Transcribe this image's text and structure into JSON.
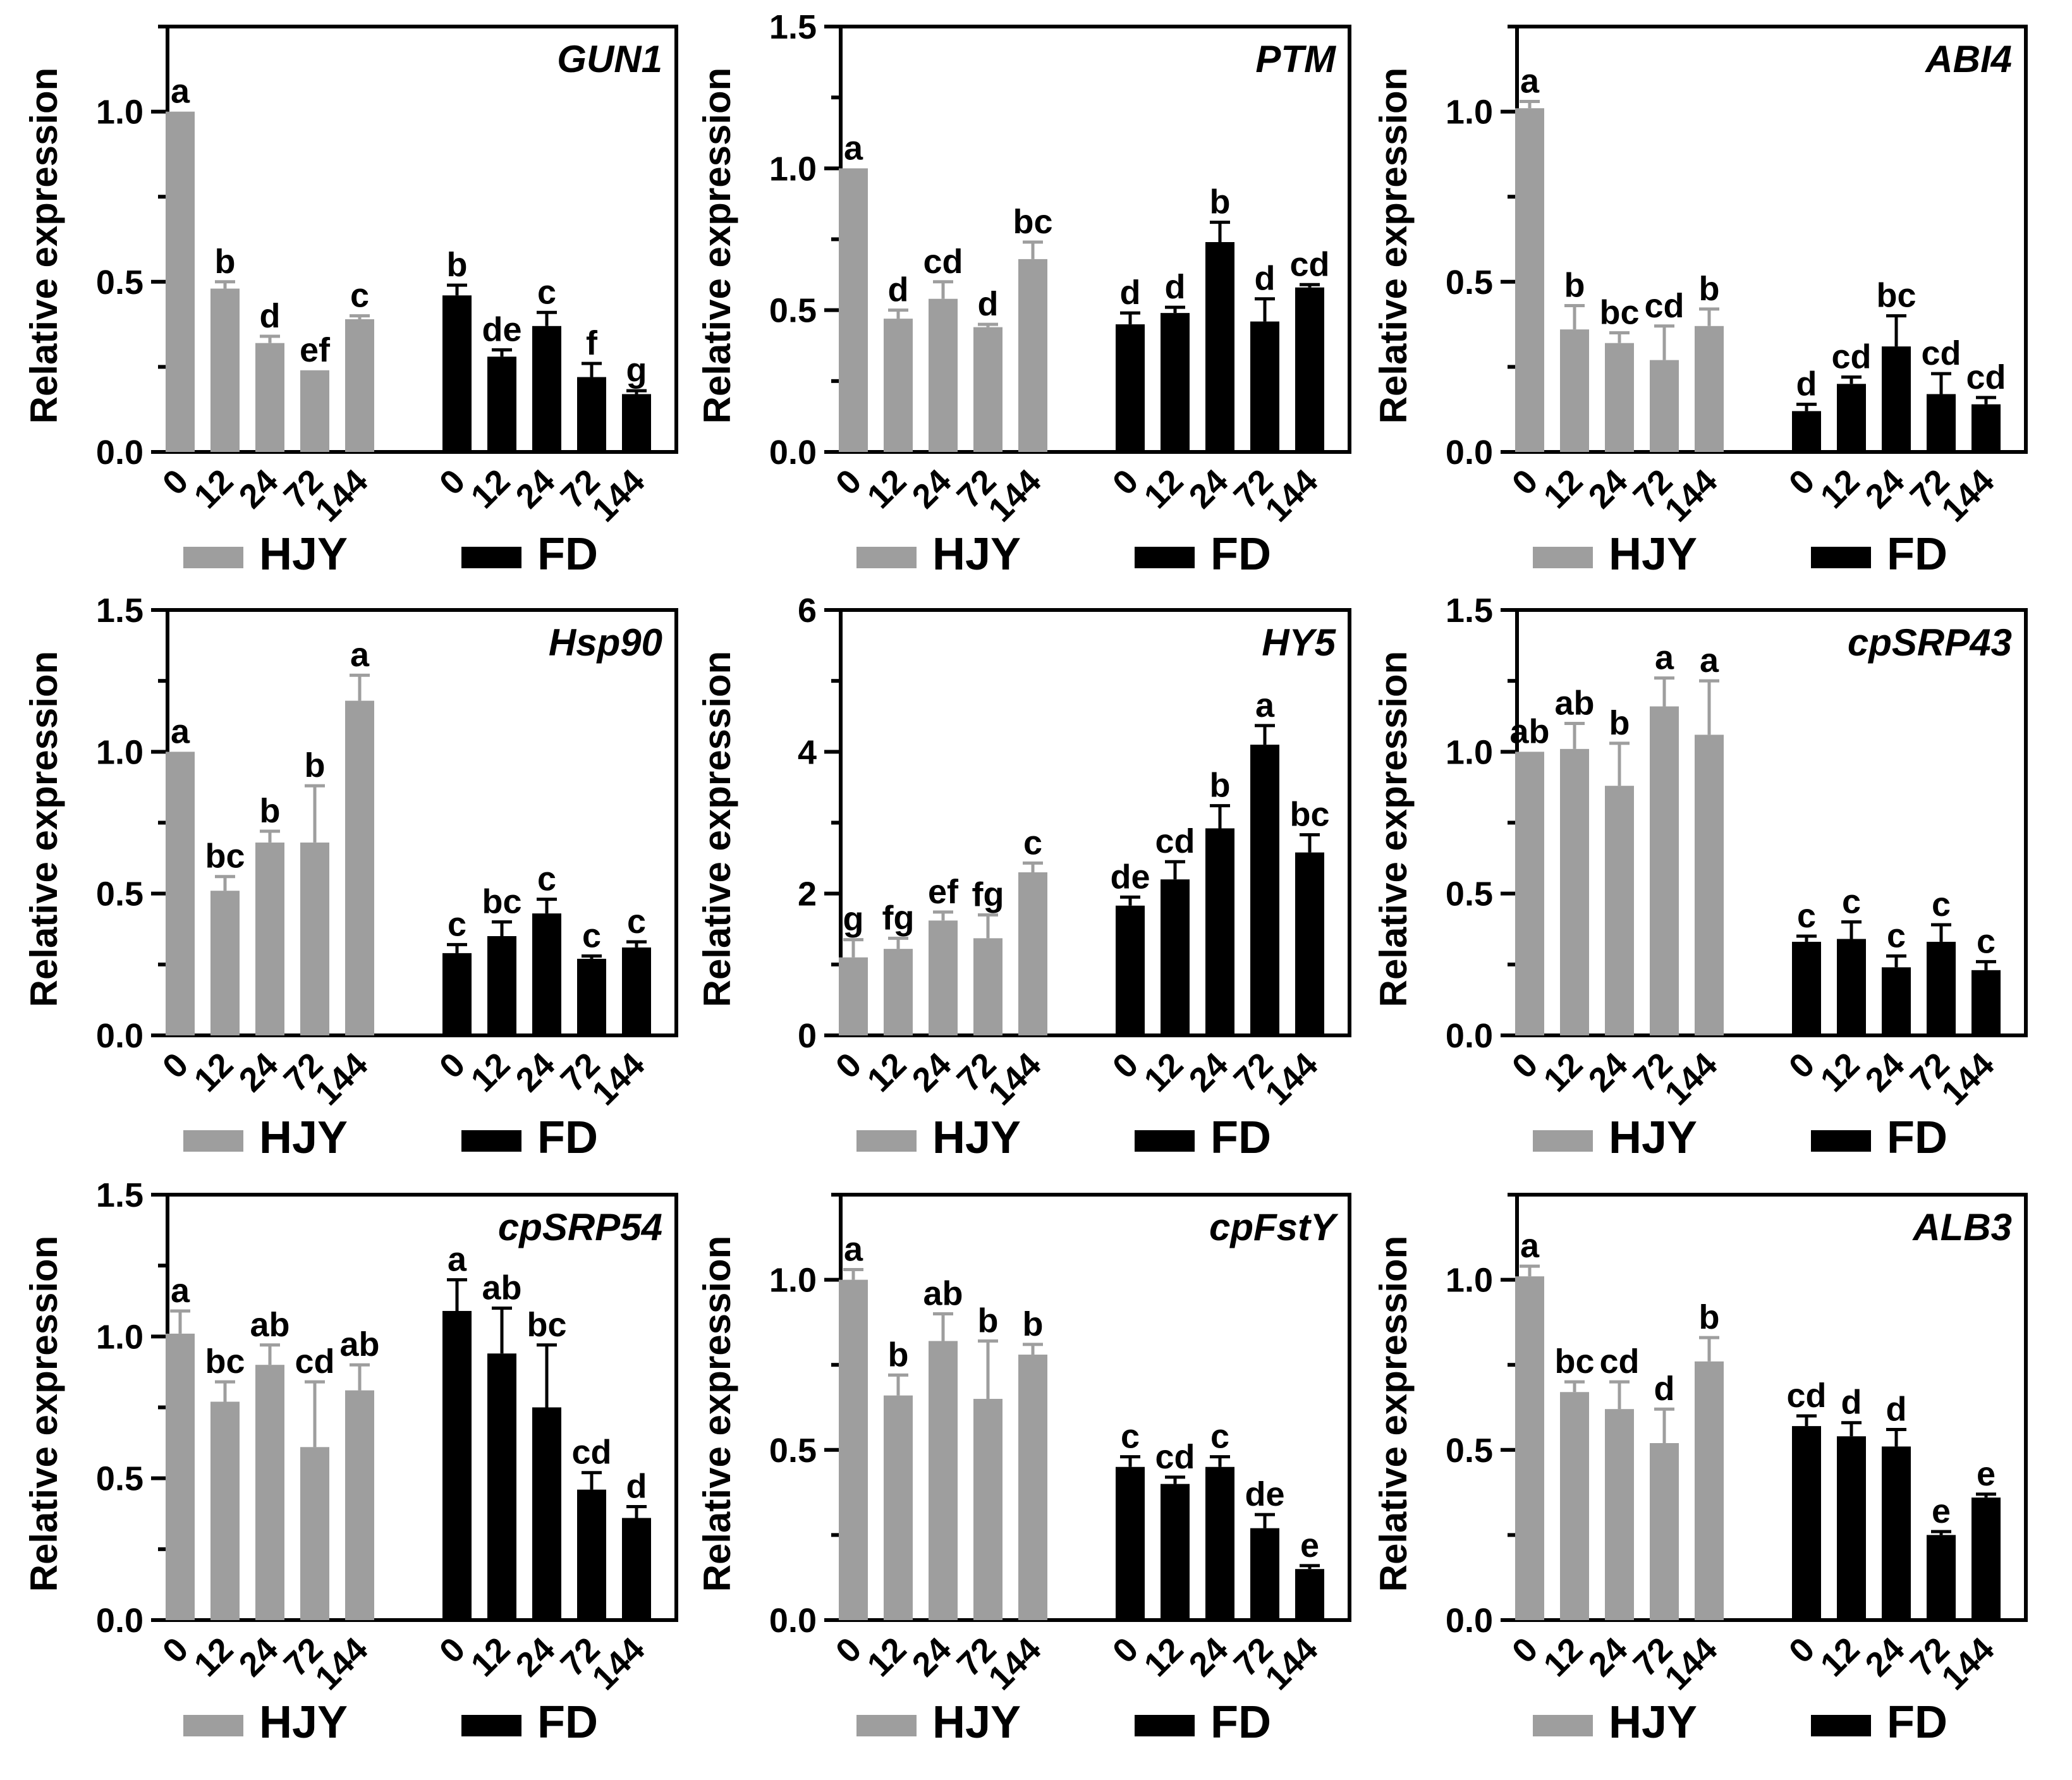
{
  "figure": {
    "y_label": "Relative expression",
    "x_tick_labels": [
      "0",
      "12",
      "24",
      "72",
      "144"
    ],
    "legend": [
      {
        "name": "HJY",
        "color": "#9e9e9e"
      },
      {
        "name": "FD",
        "color": "#000000"
      }
    ]
  },
  "chart_data": [
    {
      "type": "bar",
      "title": "GUN1",
      "ylabel": "Relative expression",
      "ylim": [
        0,
        1.25
      ],
      "yticks": [
        0.0,
        0.5,
        1.0
      ],
      "ytick_labels": [
        "0.0",
        "0.5",
        "1.0"
      ],
      "categories": [
        "0",
        "12",
        "24",
        "72",
        "144"
      ],
      "series": [
        {
          "name": "HJY",
          "color": "#9e9e9e",
          "values": [
            1.0,
            0.48,
            0.32,
            0.24,
            0.39
          ],
          "errors": [
            0,
            0.02,
            0.02,
            0,
            0.01
          ],
          "letters": [
            "a",
            "b",
            "d",
            "ef",
            "c"
          ]
        },
        {
          "name": "FD",
          "color": "#000000",
          "values": [
            0.46,
            0.28,
            0.37,
            0.22,
            0.17
          ],
          "errors": [
            0.03,
            0.02,
            0.04,
            0.04,
            0.01
          ],
          "letters": [
            "b",
            "de",
            "c",
            "f",
            "g"
          ]
        }
      ]
    },
    {
      "type": "bar",
      "title": "PTM",
      "ylabel": "Relative expression",
      "ylim": [
        0,
        1.5
      ],
      "yticks": [
        0.0,
        0.5,
        1.0,
        1.5
      ],
      "ytick_labels": [
        "0.0",
        "0.5",
        "1.0",
        "1.5"
      ],
      "categories": [
        "0",
        "12",
        "24",
        "72",
        "144"
      ],
      "series": [
        {
          "name": "HJY",
          "color": "#9e9e9e",
          "values": [
            1.0,
            0.47,
            0.54,
            0.44,
            0.68
          ],
          "errors": [
            0,
            0.03,
            0.06,
            0.01,
            0.06
          ],
          "letters": [
            "a",
            "d",
            "cd",
            "d",
            "bc"
          ]
        },
        {
          "name": "FD",
          "color": "#000000",
          "values": [
            0.45,
            0.49,
            0.74,
            0.46,
            0.58
          ],
          "errors": [
            0.04,
            0.02,
            0.07,
            0.08,
            0.01
          ],
          "letters": [
            "d",
            "d",
            "b",
            "d",
            "cd"
          ]
        }
      ]
    },
    {
      "type": "bar",
      "title": "ABI4",
      "ylabel": "Relative expression",
      "ylim": [
        0,
        1.25
      ],
      "yticks": [
        0.0,
        0.5,
        1.0
      ],
      "ytick_labels": [
        "0.0",
        "0.5",
        "1.0"
      ],
      "categories": [
        "0",
        "12",
        "24",
        "72",
        "144"
      ],
      "series": [
        {
          "name": "HJY",
          "color": "#9e9e9e",
          "values": [
            1.01,
            0.36,
            0.32,
            0.27,
            0.37
          ],
          "errors": [
            0.02,
            0.07,
            0.03,
            0.1,
            0.05
          ],
          "letters": [
            "a",
            "b",
            "bc",
            "cd",
            "b"
          ]
        },
        {
          "name": "FD",
          "color": "#000000",
          "values": [
            0.12,
            0.2,
            0.31,
            0.17,
            0.14
          ],
          "errors": [
            0.02,
            0.02,
            0.09,
            0.06,
            0.02
          ],
          "letters": [
            "d",
            "cd",
            "bc",
            "cd",
            "cd"
          ]
        }
      ]
    },
    {
      "type": "bar",
      "title": "Hsp90",
      "ylabel": "Relative expression",
      "ylim": [
        0,
        1.5
      ],
      "yticks": [
        0.0,
        0.5,
        1.0,
        1.5
      ],
      "ytick_labels": [
        "0.0",
        "0.5",
        "1.0",
        "1.5"
      ],
      "categories": [
        "0",
        "12",
        "24",
        "72",
        "144"
      ],
      "series": [
        {
          "name": "HJY",
          "color": "#9e9e9e",
          "values": [
            1.0,
            0.51,
            0.68,
            0.68,
            1.18
          ],
          "errors": [
            0,
            0.05,
            0.04,
            0.2,
            0.09
          ],
          "letters": [
            "a",
            "bc",
            "b",
            "b",
            "a"
          ]
        },
        {
          "name": "FD",
          "color": "#000000",
          "values": [
            0.29,
            0.35,
            0.43,
            0.27,
            0.31
          ],
          "errors": [
            0.03,
            0.05,
            0.05,
            0.01,
            0.02
          ],
          "letters": [
            "c",
            "bc",
            "c",
            "c",
            "c"
          ]
        }
      ]
    },
    {
      "type": "bar",
      "title": "HY5",
      "ylabel": "Relative expression",
      "ylim": [
        0,
        6
      ],
      "yticks": [
        0,
        2,
        4,
        6
      ],
      "ytick_labels": [
        "0",
        "2",
        "4",
        "6"
      ],
      "categories": [
        "0",
        "12",
        "24",
        "72",
        "144"
      ],
      "series": [
        {
          "name": "HJY",
          "color": "#9e9e9e",
          "values": [
            1.1,
            1.22,
            1.62,
            1.37,
            2.3
          ],
          "errors": [
            0.25,
            0.15,
            0.12,
            0.33,
            0.13
          ],
          "letters": [
            "g",
            "fg",
            "ef",
            "fg",
            "c"
          ]
        },
        {
          "name": "FD",
          "color": "#000000",
          "values": [
            1.83,
            2.2,
            2.92,
            4.1,
            2.58
          ],
          "errors": [
            0.12,
            0.25,
            0.32,
            0.27,
            0.25
          ],
          "letters": [
            "de",
            "cd",
            "b",
            "a",
            "bc"
          ]
        }
      ]
    },
    {
      "type": "bar",
      "title": "cpSRP43",
      "ylabel": "Relative expression",
      "ylim": [
        0,
        1.5
      ],
      "yticks": [
        0.0,
        0.5,
        1.0,
        1.5
      ],
      "ytick_labels": [
        "0.0",
        "0.5",
        "1.0",
        "1.5"
      ],
      "categories": [
        "0",
        "12",
        "24",
        "72",
        "144"
      ],
      "series": [
        {
          "name": "HJY",
          "color": "#9e9e9e",
          "values": [
            1.0,
            1.01,
            0.88,
            1.16,
            1.06
          ],
          "errors": [
            0,
            0.09,
            0.15,
            0.1,
            0.19
          ],
          "letters": [
            "ab",
            "ab",
            "b",
            "a",
            "a"
          ]
        },
        {
          "name": "FD",
          "color": "#000000",
          "values": [
            0.33,
            0.34,
            0.24,
            0.33,
            0.23
          ],
          "errors": [
            0.02,
            0.06,
            0.04,
            0.06,
            0.03
          ],
          "letters": [
            "c",
            "c",
            "c",
            "c",
            "c"
          ]
        }
      ]
    },
    {
      "type": "bar",
      "title": "cpSRP54",
      "ylabel": "Relative expression",
      "ylim": [
        0,
        1.5
      ],
      "yticks": [
        0.0,
        0.5,
        1.0,
        1.5
      ],
      "ytick_labels": [
        "0.0",
        "0.5",
        "1.0",
        "1.5"
      ],
      "categories": [
        "0",
        "12",
        "24",
        "72",
        "144"
      ],
      "series": [
        {
          "name": "HJY",
          "color": "#9e9e9e",
          "values": [
            1.01,
            0.77,
            0.9,
            0.61,
            0.81
          ],
          "errors": [
            0.08,
            0.07,
            0.07,
            0.23,
            0.09
          ],
          "letters": [
            "a",
            "bc",
            "ab",
            "cd",
            "ab"
          ]
        },
        {
          "name": "FD",
          "color": "#000000",
          "values": [
            1.09,
            0.94,
            0.75,
            0.46,
            0.36
          ],
          "errors": [
            0.11,
            0.16,
            0.22,
            0.06,
            0.04
          ],
          "letters": [
            "a",
            "ab",
            "bc",
            "cd",
            "d"
          ]
        }
      ]
    },
    {
      "type": "bar",
      "title": "cpFstY",
      "ylabel": "Relative expression",
      "ylim": [
        0,
        1.25
      ],
      "yticks": [
        0.0,
        0.5,
        1.0
      ],
      "ytick_labels": [
        "0.0",
        "0.5",
        "1.0"
      ],
      "categories": [
        "0",
        "12",
        "24",
        "72",
        "144"
      ],
      "series": [
        {
          "name": "HJY",
          "color": "#9e9e9e",
          "values": [
            1.0,
            0.66,
            0.82,
            0.65,
            0.78
          ],
          "errors": [
            0.03,
            0.06,
            0.08,
            0.17,
            0.03
          ],
          "letters": [
            "a",
            "b",
            "ab",
            "b",
            "b"
          ]
        },
        {
          "name": "FD",
          "color": "#000000",
          "values": [
            0.45,
            0.4,
            0.45,
            0.27,
            0.15
          ],
          "errors": [
            0.03,
            0.02,
            0.03,
            0.04,
            0.01
          ],
          "letters": [
            "c",
            "cd",
            "c",
            "de",
            "e"
          ]
        }
      ]
    },
    {
      "type": "bar",
      "title": "ALB3",
      "ylabel": "Relative expression",
      "ylim": [
        0,
        1.25
      ],
      "yticks": [
        0.0,
        0.5,
        1.0
      ],
      "ytick_labels": [
        "0.0",
        "0.5",
        "1.0"
      ],
      "categories": [
        "0",
        "12",
        "24",
        "72",
        "144"
      ],
      "series": [
        {
          "name": "HJY",
          "color": "#9e9e9e",
          "values": [
            1.01,
            0.67,
            0.62,
            0.52,
            0.76
          ],
          "errors": [
            0.03,
            0.03,
            0.08,
            0.1,
            0.07
          ],
          "letters": [
            "a",
            "bc",
            "cd",
            "d",
            "b"
          ]
        },
        {
          "name": "FD",
          "color": "#000000",
          "values": [
            0.57,
            0.54,
            0.51,
            0.25,
            0.36
          ],
          "errors": [
            0.03,
            0.04,
            0.05,
            0.01,
            0.01
          ],
          "letters": [
            "cd",
            "d",
            "d",
            "e",
            "e"
          ]
        }
      ]
    }
  ]
}
